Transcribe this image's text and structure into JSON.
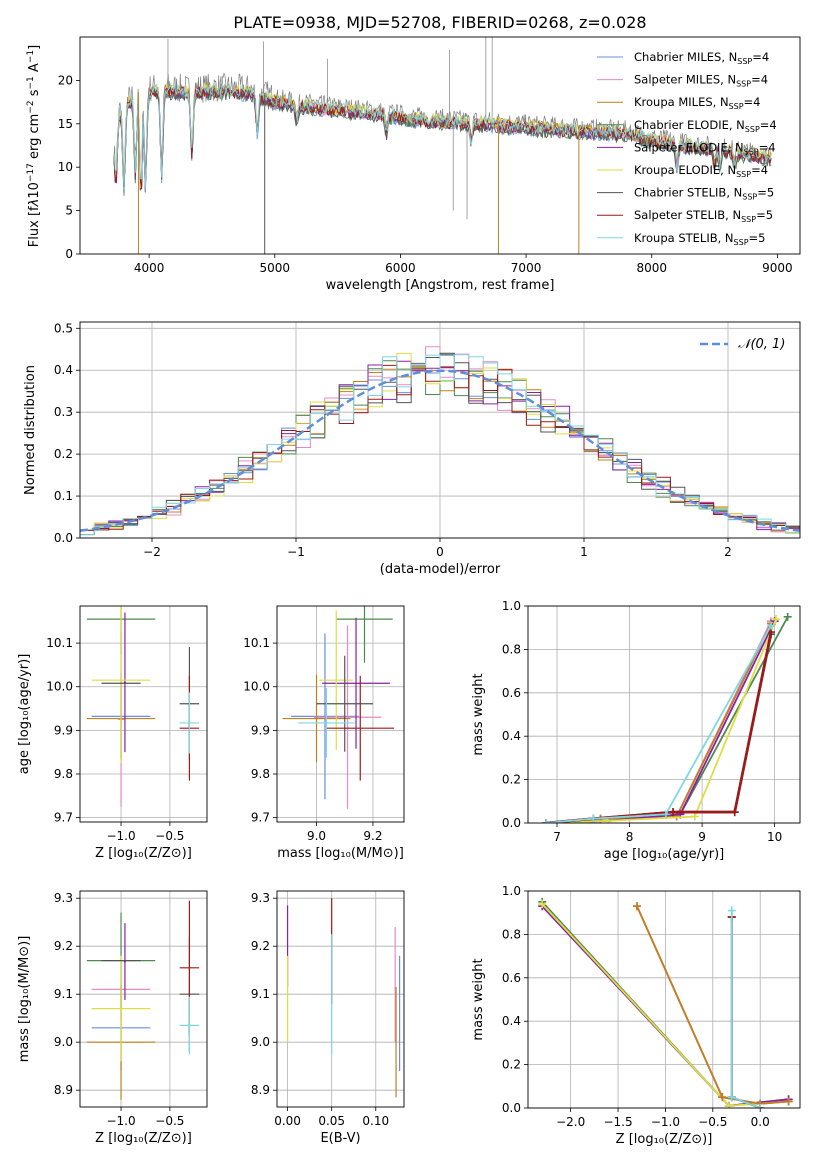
{
  "figure_title": "PLATE=0938, MJD=52708, FIBERID=0268, z=0.028",
  "colors": {
    "Chabrier MILES": "#6a8fd8",
    "Salpeter MILES": "#e889c8",
    "Kroupa MILES": "#c47f1a",
    "Chabrier ELODIE": "#4e8a4e",
    "Salpeter ELODIE": "#8a20a8",
    "Kroupa ELODIE": "#dede44",
    "Chabrier STELIB": "#555555",
    "Salpeter STELIB": "#a01818",
    "Kroupa STELIB": "#7fd8e0",
    "grid": "#b0b0b0",
    "normal_curve": "#5f8fd9",
    "spectrum_data": "#808080"
  },
  "chart_data": [
    {
      "id": "spectrum",
      "type": "line",
      "xlabel": "wavelength [Angstrom, rest frame]",
      "xlim": [
        3450,
        9180
      ],
      "ylim": [
        0,
        25
      ],
      "xticks": [
        4000,
        5000,
        6000,
        7000,
        8000,
        9000
      ],
      "yticks": [
        0,
        5,
        10,
        15,
        20
      ],
      "legend_position": "upper right",
      "legend": [
        {
          "model": "Chabrier MILES",
          "label": "Chabrier MILES, N",
          "sub": "SSP",
          "n": "=4"
        },
        {
          "model": "Salpeter MILES",
          "label": "Salpeter MILES, N",
          "sub": "SSP",
          "n": "=4"
        },
        {
          "model": "Kroupa MILES",
          "label": "Kroupa MILES, N",
          "sub": "SSP",
          "n": "=4"
        },
        {
          "model": "Chabrier ELODIE",
          "label": "Chabrier ELODIE, N",
          "sub": "SSP",
          "n": "=4"
        },
        {
          "model": "Salpeter ELODIE",
          "label": "Salpeter ELODIE, N",
          "sub": "SSP",
          "n": "=4"
        },
        {
          "model": "Kroupa ELODIE",
          "label": "Kroupa ELODIE, N",
          "sub": "SSP",
          "n": "=4"
        },
        {
          "model": "Chabrier STELIB",
          "label": "Chabrier STELIB, N",
          "sub": "SSP",
          "n": "=5"
        },
        {
          "model": "Salpeter STELIB",
          "label": "Salpeter STELIB, N",
          "sub": "SSP",
          "n": "=5"
        },
        {
          "model": "Kroupa STELIB",
          "label": "Kroupa STELIB, N",
          "sub": "SSP",
          "n": "=5"
        }
      ],
      "continuum": [
        [
          3700,
          13.6
        ],
        [
          3760,
          16.5
        ],
        [
          3850,
          18.0
        ],
        [
          3950,
          19.0
        ],
        [
          4100,
          19.3
        ],
        [
          4300,
          19.0
        ],
        [
          4500,
          19.2
        ],
        [
          4800,
          19.0
        ],
        [
          5000,
          18.0
        ],
        [
          5200,
          17.5
        ],
        [
          5500,
          17.0
        ],
        [
          5800,
          16.6
        ],
        [
          6100,
          15.9
        ],
        [
          6500,
          15.5
        ],
        [
          6800,
          15.3
        ],
        [
          7000,
          15.0
        ],
        [
          7500,
          14.5
        ],
        [
          7800,
          14.3
        ],
        [
          8000,
          13.5
        ],
        [
          8300,
          12.8
        ],
        [
          8600,
          12.3
        ],
        [
          8900,
          11.5
        ]
      ],
      "data_spikes": [
        [
          4150,
          24.8
        ],
        [
          4910,
          24.5
        ],
        [
          5420,
          22.5
        ],
        [
          6390,
          23.5
        ],
        [
          6680,
          25
        ],
        [
          6730,
          25
        ],
        [
          6420,
          5
        ],
        [
          6530,
          4
        ]
      ],
      "model_dips": [
        [
          3735,
          8.5
        ],
        [
          3800,
          8.0
        ],
        [
          3890,
          9.5
        ],
        [
          3935,
          7.2
        ],
        [
          3970,
          8.2
        ],
        [
          4100,
          9.5
        ],
        [
          4340,
          12.0
        ],
        [
          4861,
          14.5
        ],
        [
          5175,
          15.8
        ],
        [
          5890,
          14.2
        ],
        [
          6563,
          13.5
        ],
        [
          8200,
          10.5
        ],
        [
          8500,
          10.8
        ],
        [
          8542,
          10.6
        ],
        [
          8662,
          10.7
        ]
      ],
      "model_drops": [
        {
          "model": "Kroupa MILES",
          "x": 3915
        },
        {
          "model": "Chabrier STELIB",
          "x": 4920
        },
        {
          "model": "Kroupa MILES",
          "x": 6780
        },
        {
          "model": "Kroupa MILES",
          "x": 7420
        }
      ]
    },
    {
      "id": "residual_hist",
      "type": "line",
      "xlabel": "(data-model)/error",
      "ylabel": "Normed distribution",
      "xlim": [
        -2.5,
        2.5
      ],
      "ylim": [
        0,
        0.515
      ],
      "xticks": [
        -2,
        -1,
        0,
        1,
        2
      ],
      "xticklabels": [
        "−2",
        "−1",
        "0",
        "1",
        "2"
      ],
      "yticks": [
        0,
        0.1,
        0.2,
        0.3,
        0.4,
        0.5
      ],
      "yticklabels": [
        "0.0",
        "0.1",
        "0.2",
        "0.3",
        "0.4",
        "0.5"
      ],
      "legend_label": "𝒩(0, 1)",
      "legend_position": "upper right",
      "bin_width": 0.1
    },
    {
      "id": "age_vs_Z",
      "type": "scatter",
      "xlabel": "Z [log₁₀(Z/Z⊙)]",
      "ylabel": "age  [log₁₀(age/yr)]",
      "xlim": [
        -1.42,
        -0.12
      ],
      "ylim": [
        9.69,
        10.185
      ],
      "xticks": [
        -1.0,
        -0.5
      ],
      "xticklabels": [
        "−1.0",
        "−0.5"
      ],
      "yticks": [
        9.7,
        9.8,
        9.9,
        10.0,
        10.1
      ],
      "yticklabels": [
        "9.7",
        "9.8",
        "9.9",
        "10.0",
        "10.1"
      ],
      "points": [
        {
          "model": "Chabrier MILES",
          "x": -1.0,
          "y": 9.932,
          "xerr": 0.3,
          "yerr": 0.1
        },
        {
          "model": "Salpeter MILES",
          "x": -1.0,
          "y": 9.925,
          "xerr": 0.03,
          "yerr": 0.2
        },
        {
          "model": "Kroupa MILES",
          "x": -1.0,
          "y": 9.927,
          "xerr": 0.35,
          "yerr": 0.09
        },
        {
          "model": "Chabrier ELODIE",
          "x": -1.0,
          "y": 10.155,
          "xerr": 0.35,
          "yerr": 0.08
        },
        {
          "model": "Salpeter ELODIE",
          "x": -0.96,
          "y": 10.01,
          "xerr": 0.01,
          "yerr": 0.16
        },
        {
          "model": "Kroupa ELODIE",
          "x": -1.0,
          "y": 10.015,
          "xerr": 0.3,
          "yerr": 0.19
        },
        {
          "model": "Chabrier STELIB",
          "x": -0.3,
          "y": 9.961,
          "xerr": 0.1,
          "yerr": 0.13
        },
        {
          "model": "Salpeter STELIB",
          "x": -0.3,
          "y": 9.905,
          "xerr": 0.1,
          "yerr": 0.12
        },
        {
          "model": "Kroupa STELIB",
          "x": -0.3,
          "y": 9.917,
          "xerr": 0.1,
          "yerr": 0.07
        },
        {
          "model": "Chabrier STELIB",
          "x": -1.0,
          "y": 10.008,
          "xerr": 0.2,
          "yerr": 0.0
        }
      ]
    },
    {
      "id": "age_vs_mass",
      "type": "scatter",
      "xlabel": "mass [log₁₀(M/M⊙)]",
      "xlim": [
        8.86,
        9.31
      ],
      "ylim": [
        9.69,
        10.185
      ],
      "xticks": [
        9.0,
        9.2
      ],
      "xticklabels": [
        "9.0",
        "9.2"
      ],
      "yticks": [
        9.7,
        9.8,
        9.9,
        10.0,
        10.1
      ],
      "yticklabels": [
        "9.7",
        "9.8",
        "9.9",
        "10.0",
        "10.1"
      ],
      "points": [
        {
          "model": "Chabrier MILES",
          "x": 9.03,
          "y": 9.932,
          "xerr": 0.12,
          "yerr": 0.19
        },
        {
          "model": "Salpeter MILES",
          "x": 9.11,
          "y": 9.93,
          "xerr": 0.12,
          "yerr": 0.21
        },
        {
          "model": "Kroupa MILES",
          "x": 9.0,
          "y": 9.927,
          "xerr": 0.12,
          "yerr": 0.1
        },
        {
          "model": "Chabrier ELODIE",
          "x": 9.17,
          "y": 10.155,
          "xerr": 0.1,
          "yerr": 0.1
        },
        {
          "model": "Salpeter ELODIE",
          "x": 9.14,
          "y": 10.008,
          "xerr": 0.12,
          "yerr": 0.15
        },
        {
          "model": "Kroupa ELODIE",
          "x": 9.07,
          "y": 10.015,
          "xerr": 0.06,
          "yerr": 0.16
        },
        {
          "model": "Chabrier STELIB",
          "x": 9.1,
          "y": 9.961,
          "xerr": 0.1,
          "yerr": 0.11
        },
        {
          "model": "Salpeter STELIB",
          "x": 9.155,
          "y": 9.905,
          "xerr": 0.12,
          "yerr": 0.12
        },
        {
          "model": "Kroupa STELIB",
          "x": 9.035,
          "y": 9.917,
          "xerr": 0.1,
          "yerr": 0.08
        }
      ]
    },
    {
      "id": "mass_weight_vs_age",
      "type": "line",
      "xlabel": "age  [log₁₀(age/yr)]",
      "ylabel": "mass weight",
      "xlim": [
        6.6,
        10.35
      ],
      "ylim": [
        0,
        1.0
      ],
      "xticks": [
        7,
        8,
        9,
        10
      ],
      "yticks": [
        0,
        0.2,
        0.4,
        0.6,
        0.8,
        1.0
      ],
      "yticklabels": [
        "0.0",
        "0.2",
        "0.4",
        "0.6",
        "0.8",
        "1.0"
      ],
      "series": [
        {
          "model": "Chabrier MILES",
          "x": [
            6.85,
            7.6,
            8.65,
            9.95
          ],
          "y": [
            0.0,
            0.02,
            0.03,
            0.92
          ]
        },
        {
          "model": "Salpeter MILES",
          "x": [
            6.85,
            7.6,
            8.65,
            9.95
          ],
          "y": [
            0.0,
            0.02,
            0.03,
            0.93
          ]
        },
        {
          "model": "Kroupa MILES",
          "x": [
            6.85,
            7.6,
            8.65,
            9.95
          ],
          "y": [
            0.0,
            0.02,
            0.03,
            0.92
          ]
        },
        {
          "model": "Chabrier ELODIE",
          "x": [
            6.85,
            7.7,
            8.7,
            10.18
          ],
          "y": [
            0.0,
            0.01,
            0.04,
            0.95
          ]
        },
        {
          "model": "Salpeter ELODIE",
          "x": [
            6.85,
            7.7,
            8.7,
            10.0
          ],
          "y": [
            0.0,
            0.01,
            0.04,
            0.93
          ]
        },
        {
          "model": "Kroupa ELODIE",
          "x": [
            6.85,
            7.7,
            8.9,
            10.02
          ],
          "y": [
            0.0,
            0.01,
            0.03,
            0.94
          ]
        },
        {
          "model": "Chabrier STELIB",
          "x": [
            6.85,
            7.5,
            8.6,
            9.45,
            9.95
          ],
          "y": [
            0.0,
            0.02,
            0.05,
            0.05,
            0.87
          ]
        },
        {
          "model": "Salpeter STELIB",
          "x": [
            6.85,
            7.5,
            8.6,
            9.45,
            9.95
          ],
          "y": [
            0.0,
            0.02,
            0.05,
            0.05,
            0.88
          ]
        },
        {
          "model": "Kroupa STELIB",
          "x": [
            6.85,
            7.5,
            8.5,
            9.95
          ],
          "y": [
            0.0,
            0.02,
            0.04,
            0.91
          ]
        }
      ]
    },
    {
      "id": "mass_vs_Z",
      "type": "scatter",
      "xlabel": "Z [log₁₀(Z/Z⊙)]",
      "ylabel": "mass [log₁₀(M/M⊙)]",
      "xlim": [
        -1.42,
        -0.12
      ],
      "ylim": [
        8.865,
        9.315
      ],
      "xticks": [
        -1.0,
        -0.5
      ],
      "xticklabels": [
        "−1.0",
        "−0.5"
      ],
      "yticks": [
        8.9,
        9.0,
        9.1,
        9.2,
        9.3
      ],
      "yticklabels": [
        "8.9",
        "9.0",
        "9.1",
        "9.2",
        "9.3"
      ],
      "points": [
        {
          "model": "Chabrier MILES",
          "x": -1.0,
          "y": 9.03,
          "xerr": 0.3,
          "yerr": 0.09
        },
        {
          "model": "Salpeter MILES",
          "x": -1.0,
          "y": 9.11,
          "xerr": 0.3,
          "yerr": 0.06
        },
        {
          "model": "Kroupa MILES",
          "x": -1.0,
          "y": 9.0,
          "xerr": 0.35,
          "yerr": 0.12
        },
        {
          "model": "Chabrier ELODIE",
          "x": -1.0,
          "y": 9.17,
          "xerr": 0.35,
          "yerr": 0.1
        },
        {
          "model": "Salpeter ELODIE",
          "x": -0.96,
          "y": 9.168,
          "xerr": 0.01,
          "yerr": 0.08
        },
        {
          "model": "Kroupa ELODIE",
          "x": -1.0,
          "y": 9.07,
          "xerr": 0.3,
          "yerr": 0.11
        },
        {
          "model": "Chabrier STELIB",
          "x": -0.3,
          "y": 9.1,
          "xerr": 0.1,
          "yerr": 0.12
        },
        {
          "model": "Salpeter STELIB",
          "x": -0.3,
          "y": 9.155,
          "xerr": 0.1,
          "yerr": 0.14
        },
        {
          "model": "Kroupa STELIB",
          "x": -0.3,
          "y": 9.035,
          "xerr": 0.1,
          "yerr": 0.06
        },
        {
          "model": "Chabrier STELIB",
          "x": -1.0,
          "y": 9.17,
          "xerr": 0.2,
          "yerr": 0.0
        }
      ]
    },
    {
      "id": "mass_vs_ebv",
      "type": "scatter",
      "xlabel": "E(B-V)",
      "xlim": [
        -0.012,
        0.132
      ],
      "ylim": [
        8.865,
        9.315
      ],
      "xticks": [
        0.0,
        0.05,
        0.1
      ],
      "xticklabels": [
        "0.00",
        "0.05",
        "0.10"
      ],
      "yticks": [
        8.9,
        9.0,
        9.1,
        9.2,
        9.3
      ],
      "yticklabels": [
        "8.9",
        "9.0",
        "9.1",
        "9.2",
        "9.3"
      ],
      "points": [
        {
          "model": "Salpeter ELODIE",
          "x": 0.0,
          "y": 9.2,
          "yerr": 0.085
        },
        {
          "model": "Kroupa ELODIE",
          "x": 0.0,
          "y": 9.09,
          "yerr": 0.09
        },
        {
          "model": "Salpeter STELIB",
          "x": 0.05,
          "y": 9.19,
          "yerr": 0.11
        },
        {
          "model": "Kroupa STELIB",
          "x": 0.05,
          "y": 9.1,
          "yerr": 0.125
        },
        {
          "model": "Salpeter MILES",
          "x": 0.122,
          "y": 9.12,
          "yerr": 0.12
        },
        {
          "model": "Kroupa MILES",
          "x": 0.123,
          "y": 9.0,
          "yerr": 0.115
        },
        {
          "model": "Chabrier MILES",
          "x": 0.127,
          "y": 9.06,
          "yerr": 0.12
        }
      ]
    },
    {
      "id": "mass_weight_vs_Z",
      "type": "line",
      "xlabel": "Z [log₁₀(Z/Z⊙)]",
      "ylabel": "mass weight",
      "xlim": [
        -2.45,
        0.42
      ],
      "ylim": [
        0,
        1.0
      ],
      "xticks": [
        -2.0,
        -1.5,
        -1.0,
        -0.5,
        0.0
      ],
      "xticklabels": [
        "−2.0",
        "−1.5",
        "−1.0",
        "−0.5",
        "0.0"
      ],
      "yticks": [
        0,
        0.2,
        0.4,
        0.6,
        0.8,
        1.0
      ],
      "yticklabels": [
        "0.0",
        "0.2",
        "0.4",
        "0.6",
        "0.8",
        "1.0"
      ],
      "series": [
        {
          "model": "Chabrier ELODIE",
          "x": [
            -2.3,
            -0.33,
            0.3
          ],
          "y": [
            0.95,
            0.01,
            0.04
          ]
        },
        {
          "model": "Salpeter ELODIE",
          "x": [
            -2.3,
            -0.33,
            0.3
          ],
          "y": [
            0.93,
            0.01,
            0.04
          ]
        },
        {
          "model": "Kroupa ELODIE",
          "x": [
            -2.3,
            -0.33,
            0.3
          ],
          "y": [
            0.94,
            0.01,
            0.03
          ]
        },
        {
          "model": "Chabrier MILES",
          "x": [
            -1.3,
            -0.4,
            0.0,
            0.3
          ],
          "y": [
            0.93,
            0.05,
            0.02,
            0.03
          ]
        },
        {
          "model": "Salpeter MILES",
          "x": [
            -1.3,
            -0.4,
            0.0,
            0.3
          ],
          "y": [
            0.93,
            0.05,
            0.02,
            0.03
          ]
        },
        {
          "model": "Kroupa MILES",
          "x": [
            -1.3,
            -0.4,
            0.0,
            0.3
          ],
          "y": [
            0.93,
            0.05,
            0.02,
            0.03
          ]
        },
        {
          "model": "Chabrier STELIB",
          "x": [
            -0.3,
            -0.3,
            0.0
          ],
          "y": [
            0.88,
            0.05,
            0.0
          ]
        },
        {
          "model": "Salpeter STELIB",
          "x": [
            -0.3,
            -0.3,
            0.0
          ],
          "y": [
            0.88,
            0.05,
            0.0
          ]
        },
        {
          "model": "Kroupa STELIB",
          "x": [
            -0.3,
            -0.3,
            0.0
          ],
          "y": [
            0.91,
            0.05,
            0.0
          ]
        }
      ]
    }
  ]
}
